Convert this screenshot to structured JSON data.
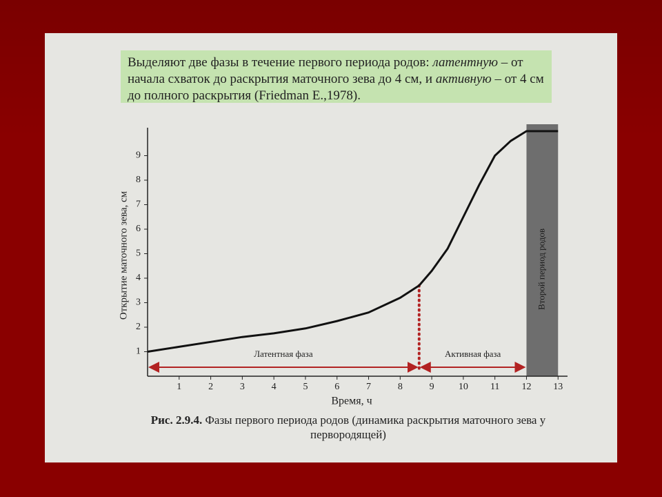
{
  "note": [
    {
      "text": "Выделяют две фазы в течение первого периода родов: ",
      "italic": false
    },
    {
      "text": "латентную",
      "italic": true
    },
    {
      "text": " – от начала схваток до раскрытия маточного зева до 4 см, и ",
      "italic": false
    },
    {
      "text": "активную",
      "italic": true
    },
    {
      "text": " – от 4 см до полного раскрытия (Friedman E.,1978).",
      "italic": false
    }
  ],
  "caption": {
    "label": "Рис. 2.9.4.",
    "text": "Фазы первого периода родов (динамика раскрытия маточного зева у первородящей)"
  },
  "chart_data": {
    "type": "line",
    "xlabel": "Время, ч",
    "ylabel": "Открытие маточного зева, см",
    "x": [
      0,
      1,
      2,
      3,
      4,
      5,
      6,
      7,
      8,
      8.6,
      9,
      9.5,
      10,
      10.5,
      11,
      11.5,
      12,
      12.5,
      13
    ],
    "series": [
      {
        "color": "#111111",
        "values": [
          1.0,
          1.2,
          1.4,
          1.6,
          1.75,
          1.95,
          2.25,
          2.6,
          3.2,
          3.7,
          4.3,
          5.2,
          6.5,
          7.8,
          9.0,
          9.6,
          10.0,
          10.0,
          10.0
        ]
      }
    ],
    "xlim": [
      0,
      13.3
    ],
    "ylim": [
      0,
      10
    ],
    "xticks": [
      1,
      2,
      3,
      4,
      5,
      6,
      7,
      8,
      9,
      10,
      11,
      12,
      13
    ],
    "yticks": [
      1,
      2,
      3,
      4,
      5,
      6,
      7,
      8,
      9
    ],
    "marker": {
      "x": 8.6,
      "y": 3.7,
      "color": "#b22222"
    },
    "phases": [
      {
        "label": "Латентная фаза",
        "start": 0,
        "end": 8.6
      },
      {
        "label": "Активная фаза",
        "start": 8.6,
        "end": 12
      }
    ],
    "regions": [
      {
        "label": "Второй период родов",
        "start": 12,
        "end": 13,
        "color": "#6e6e6e"
      }
    ]
  }
}
